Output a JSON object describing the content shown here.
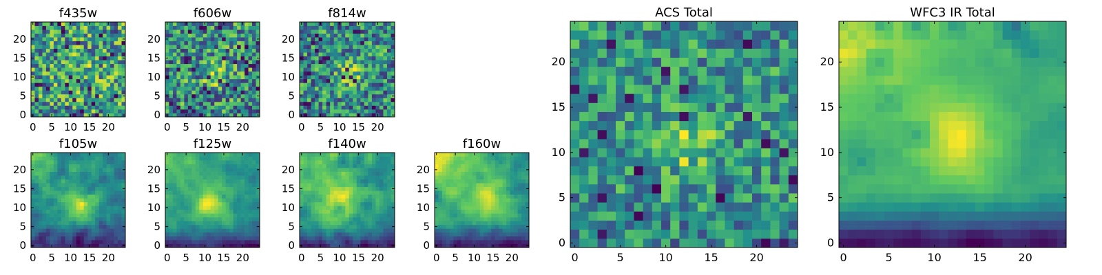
{
  "figure": {
    "background": "#ffffff",
    "colormap": [
      "#440154",
      "#3b528b",
      "#21918c",
      "#5ec962",
      "#fde725"
    ]
  },
  "chart_data": [
    {
      "type": "heatmap",
      "title": "f435w",
      "grid": [
        25,
        25
      ],
      "xlim": [
        -0.5,
        24.5
      ],
      "ylim": [
        -0.5,
        24.5
      ],
      "xticks": [
        0,
        5,
        10,
        15,
        20
      ],
      "yticks": [
        0,
        5,
        10,
        15,
        20
      ],
      "seed": 11,
      "noise": 0.42,
      "peak": {
        "x": 13,
        "y": 11,
        "amp": 0.1,
        "sigma": 3.5
      },
      "gradient": {
        "amp": 0,
        "cx": 0,
        "cy": 24,
        "scale": 20
      },
      "low_rows": {
        "amp": 0,
        "rows": 4
      },
      "smooth": 0,
      "dark_spots": 0.04
    },
    {
      "type": "heatmap",
      "title": "f606w",
      "grid": [
        25,
        25
      ],
      "xlim": [
        -0.5,
        24.5
      ],
      "ylim": [
        -0.5,
        24.5
      ],
      "xticks": [
        0,
        5,
        10,
        15,
        20
      ],
      "yticks": [
        0,
        5,
        10,
        15,
        20
      ],
      "seed": 23,
      "noise": 0.42,
      "peak": {
        "x": 12.5,
        "y": 11,
        "amp": 0.35,
        "sigma": 2.2
      },
      "gradient": {
        "amp": 0,
        "cx": 0,
        "cy": 24,
        "scale": 20
      },
      "low_rows": {
        "amp": 0.05,
        "rows": 5
      },
      "smooth": 0,
      "dark_spots": 0.05
    },
    {
      "type": "heatmap",
      "title": "f814w",
      "grid": [
        25,
        25
      ],
      "xlim": [
        -0.5,
        24.5
      ],
      "ylim": [
        -0.5,
        24.5
      ],
      "xticks": [
        0,
        5,
        10,
        15,
        20
      ],
      "yticks": [
        0,
        5,
        10,
        15,
        20
      ],
      "seed": 37,
      "noise": 0.42,
      "peak": {
        "x": 12.5,
        "y": 11,
        "amp": 0.4,
        "sigma": 2.2
      },
      "gradient": {
        "amp": 0,
        "cx": 0,
        "cy": 24,
        "scale": 20
      },
      "low_rows": {
        "amp": 0.08,
        "rows": 5
      },
      "smooth": 0,
      "dark_spots": 0.05
    },
    {
      "type": "heatmap",
      "title": "f105w",
      "grid": [
        25,
        25
      ],
      "xlim": [
        -0.5,
        24.5
      ],
      "ylim": [
        -0.5,
        24.5
      ],
      "xticks": [
        0,
        5,
        10,
        15,
        20
      ],
      "yticks": [
        0,
        5,
        10,
        15,
        20
      ],
      "seed": 41,
      "noise": 0.22,
      "peak": {
        "x": 13,
        "y": 11,
        "amp": 0.35,
        "sigma": 3.0
      },
      "gradient": {
        "amp": 0.25,
        "cx": 0,
        "cy": 24,
        "scale": 14
      },
      "low_rows": {
        "amp": 0.25,
        "rows": 6
      },
      "smooth": 1,
      "dark_spots": 0.02
    },
    {
      "type": "heatmap",
      "title": "f125w",
      "grid": [
        25,
        25
      ],
      "xlim": [
        -0.5,
        24.5
      ],
      "ylim": [
        -0.5,
        24.5
      ],
      "xticks": [
        0,
        5,
        10,
        15,
        20
      ],
      "yticks": [
        0,
        5,
        10,
        15,
        20
      ],
      "seed": 53,
      "noise": 0.18,
      "peak": {
        "x": 12,
        "y": 11,
        "amp": 0.35,
        "sigma": 3.0
      },
      "gradient": {
        "amp": 0.3,
        "cx": 0,
        "cy": 24,
        "scale": 14
      },
      "low_rows": {
        "amp": 0.3,
        "rows": 6
      },
      "smooth": 1,
      "dark_spots": 0.01
    },
    {
      "type": "heatmap",
      "title": "f140w",
      "grid": [
        25,
        25
      ],
      "xlim": [
        -0.5,
        24.5
      ],
      "ylim": [
        -0.5,
        24.5
      ],
      "xticks": [
        0,
        5,
        10,
        15,
        20
      ],
      "yticks": [
        0,
        5,
        10,
        15,
        20
      ],
      "seed": 67,
      "noise": 0.22,
      "peak": {
        "x": 10,
        "y": 12,
        "amp": 0.3,
        "sigma": 3.5
      },
      "gradient": {
        "amp": 0.3,
        "cx": 0,
        "cy": 24,
        "scale": 14
      },
      "low_rows": {
        "amp": 0.3,
        "rows": 6
      },
      "smooth": 1,
      "dark_spots": 0.01
    },
    {
      "type": "heatmap",
      "title": "f160w",
      "grid": [
        25,
        25
      ],
      "xlim": [
        -0.5,
        24.5
      ],
      "ylim": [
        -0.5,
        24.5
      ],
      "xticks": [
        0,
        5,
        10,
        15,
        20
      ],
      "yticks": [
        0,
        5,
        10,
        15,
        20
      ],
      "seed": 71,
      "noise": 0.15,
      "peak": {
        "x": 14,
        "y": 12,
        "amp": 0.25,
        "sigma": 3.5
      },
      "gradient": {
        "amp": 0.4,
        "cx": 0,
        "cy": 24,
        "scale": 12
      },
      "low_rows": {
        "amp": 0.35,
        "rows": 6
      },
      "smooth": 1,
      "dark_spots": 0.01
    },
    {
      "type": "heatmap",
      "title": "ACS Total",
      "grid": [
        25,
        25
      ],
      "xlim": [
        -0.5,
        24.5
      ],
      "ylim": [
        -0.5,
        24.5
      ],
      "xticks": [
        0,
        5,
        10,
        15,
        20
      ],
      "yticks": [
        0,
        5,
        10,
        15,
        20
      ],
      "seed": 83,
      "noise": 0.32,
      "peak": {
        "x": 12.5,
        "y": 11,
        "amp": 0.4,
        "sigma": 2.0
      },
      "gradient": {
        "amp": 0,
        "cx": 0,
        "cy": 24,
        "scale": 20
      },
      "low_rows": {
        "amp": 0.05,
        "rows": 5
      },
      "smooth": 0,
      "dark_spots": 0.04
    },
    {
      "type": "heatmap",
      "title": "WFC3 IR Total",
      "grid": [
        25,
        25
      ],
      "xlim": [
        -0.5,
        24.5
      ],
      "ylim": [
        -0.5,
        24.5
      ],
      "xticks": [
        0,
        5,
        10,
        15,
        20
      ],
      "yticks": [
        0,
        5,
        10,
        15,
        20
      ],
      "seed": 97,
      "noise": 0.1,
      "peak": {
        "x": 13,
        "y": 11,
        "amp": 0.3,
        "sigma": 3.0
      },
      "gradient": {
        "amp": 0.45,
        "cx": 0,
        "cy": 24,
        "scale": 12
      },
      "low_rows": {
        "amp": 0.45,
        "rows": 5
      },
      "smooth": 1,
      "dark_spots": 0.02
    }
  ]
}
